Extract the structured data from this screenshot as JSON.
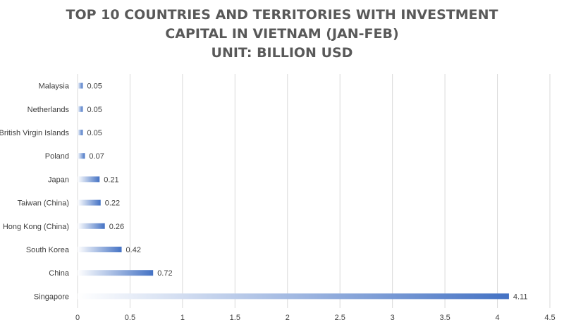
{
  "chart_data": {
    "type": "bar",
    "orientation": "horizontal",
    "title_lines": [
      "TOP 10 COUNTRIES AND TERRITORIES WITH INVESTMENT",
      "CAPITAL IN VIETNAM (JAN-FEB)",
      "UNIT: BILLION USD"
    ],
    "categories": [
      "Malaysia",
      "Netherlands",
      "British Virgin Islands",
      "Poland",
      "Japan",
      "Taiwan (China)",
      "Hong Kong (China)",
      "South Korea",
      "China",
      "Singapore"
    ],
    "values": [
      0.05,
      0.05,
      0.05,
      0.07,
      0.21,
      0.22,
      0.26,
      0.42,
      0.72,
      4.11
    ],
    "value_labels": [
      "0.05",
      "0.05",
      "0.05",
      "0.07",
      "0.21",
      "0.22",
      "0.26",
      "0.42",
      "0.72",
      "4.11"
    ],
    "xlim": [
      0,
      4.5
    ],
    "xticks": [
      0,
      0.5,
      1,
      1.5,
      2,
      2.5,
      3,
      3.5,
      4,
      4.5
    ],
    "xtick_labels": [
      "0",
      "0.5",
      "1",
      "1.5",
      "2",
      "2.5",
      "3",
      "3.5",
      "4",
      "4.5"
    ],
    "grid": "vertical",
    "legend": "none",
    "bar_color": "#4472c4",
    "bar_fade_color": "#ffffff",
    "grid_color": "#d9d9d9",
    "title_color": "#595959",
    "label_color": "#404040"
  }
}
